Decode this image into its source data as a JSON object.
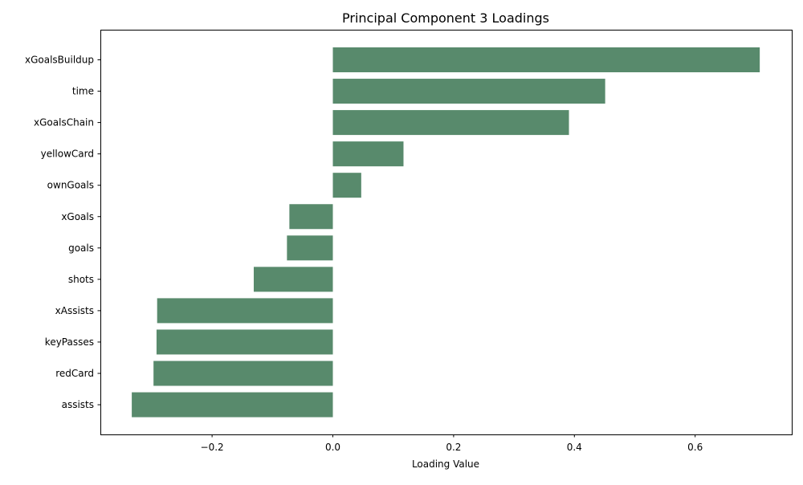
{
  "chart_data": {
    "type": "bar",
    "orientation": "horizontal",
    "title": "Principal Component 3 Loadings",
    "xlabel": "Loading Value",
    "ylabel": "",
    "xlim": [
      -0.385,
      0.76
    ],
    "xticks": [
      -0.2,
      0.0,
      0.2,
      0.4,
      0.6
    ],
    "xtick_labels": [
      "−0.2",
      "0.0",
      "0.2",
      "0.4",
      "0.6"
    ],
    "grid": false,
    "legend": "none",
    "bar_color": "#588a6c",
    "categories": [
      "xGoalsBuildup",
      "time",
      "xGoalsChain",
      "yellowCard",
      "ownGoals",
      "xGoals",
      "goals",
      "shots",
      "xAssists",
      "keyPasses",
      "redCard",
      "assists"
    ],
    "values": [
      0.707,
      0.451,
      0.391,
      0.117,
      0.047,
      -0.072,
      -0.076,
      -0.131,
      -0.291,
      -0.292,
      -0.297,
      -0.333
    ]
  }
}
